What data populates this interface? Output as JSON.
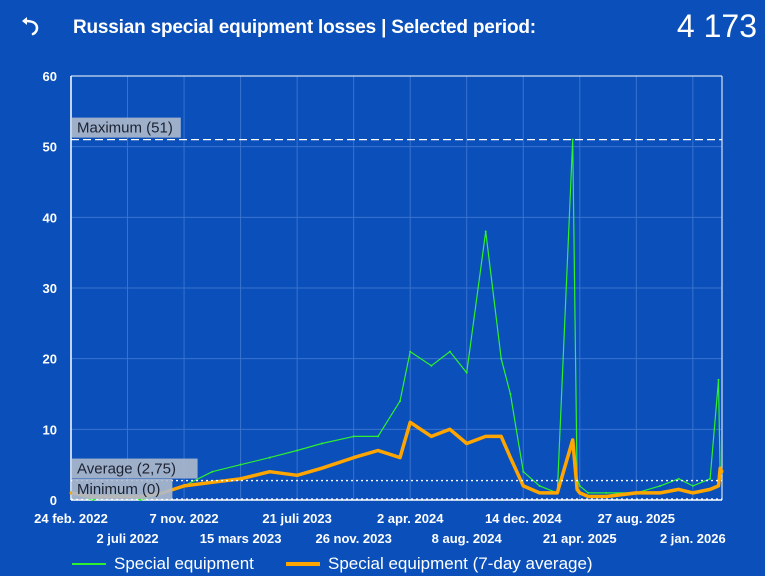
{
  "header": {
    "back_icon": "undo-arrow-icon",
    "title": "Russian special equipment losses | Selected period:",
    "total": "4 173"
  },
  "colors": {
    "background": "#0a4fba",
    "daily": "#2ef02e",
    "average": "#ffa500",
    "grid": "#3a73cf",
    "ref_line": "#ffffff",
    "ref_label_bg": "#aeb9cc"
  },
  "chart_data": {
    "type": "line",
    "title": "Russian special equipment losses",
    "xlabel": "",
    "ylabel": "",
    "x_range": [
      "2022-02-24",
      "2026-03-09"
    ],
    "ylim": [
      0,
      60
    ],
    "yticks": [
      "0",
      "10",
      "20",
      "30",
      "40",
      "50",
      "60"
    ],
    "xticks_row1": [
      "24 feb. 2022",
      "7 nov. 2022",
      "21 juli 2023",
      "2 apr. 2024",
      "14 dec. 2024",
      "27 aug. 2025"
    ],
    "xticks_row2": [
      "2 juli 2022",
      "15 mars 2023",
      "26 nov. 2023",
      "8 aug. 2024",
      "21 apr. 2025",
      "2 jan. 2026"
    ],
    "xticks_row1_dates": [
      "2022-02-24",
      "2022-11-07",
      "2023-07-21",
      "2024-04-02",
      "2024-12-14",
      "2025-08-27"
    ],
    "xticks_row2_dates": [
      "2022-07-02",
      "2023-03-15",
      "2023-11-26",
      "2024-08-08",
      "2025-04-21",
      "2026-01-02"
    ],
    "grid": true,
    "legend_position": "bottom",
    "reference_lines": [
      {
        "label": "Maximum (51)",
        "value": 51,
        "style": "dashed"
      },
      {
        "label": "Average (2,75)",
        "value": 2.75,
        "style": "dotted"
      },
      {
        "label": "Minimum (0)",
        "value": 0,
        "style": "dotted"
      }
    ],
    "series": [
      {
        "name": "Special equipment",
        "style": "thin-line",
        "x": [
          "2022-02-24",
          "2022-04-15",
          "2022-06-10",
          "2022-08-01",
          "2022-09-20",
          "2022-11-07",
          "2023-01-10",
          "2023-03-15",
          "2023-05-20",
          "2023-07-21",
          "2023-09-15",
          "2023-11-26",
          "2024-01-20",
          "2024-03-10",
          "2024-04-02",
          "2024-05-20",
          "2024-07-01",
          "2024-08-08",
          "2024-09-20",
          "2024-10-25",
          "2024-11-15",
          "2024-12-14",
          "2025-01-20",
          "2025-03-01",
          "2025-04-05",
          "2025-04-15",
          "2025-04-21",
          "2025-05-10",
          "2025-06-20",
          "2025-08-27",
          "2025-10-20",
          "2025-12-01",
          "2026-01-02",
          "2026-02-10",
          "2026-03-01",
          "2026-03-05",
          "2026-03-09"
        ],
        "y": [
          1,
          0,
          1,
          0,
          1,
          2,
          4,
          5,
          6,
          7,
          8,
          9,
          9,
          14,
          21,
          19,
          21,
          18,
          38,
          20,
          15,
          4,
          2,
          1,
          51,
          3,
          2,
          1,
          1,
          1,
          2,
          3,
          2,
          3,
          17,
          3,
          4
        ]
      },
      {
        "name": "Special equipment (7-day average)",
        "style": "thick-line",
        "x": [
          "2022-02-24",
          "2022-04-15",
          "2022-06-10",
          "2022-08-01",
          "2022-09-20",
          "2022-11-07",
          "2023-01-10",
          "2023-03-15",
          "2023-05-20",
          "2023-07-21",
          "2023-09-15",
          "2023-11-26",
          "2024-01-20",
          "2024-03-10",
          "2024-04-02",
          "2024-05-20",
          "2024-07-01",
          "2024-08-08",
          "2024-09-20",
          "2024-10-25",
          "2024-11-15",
          "2024-12-14",
          "2025-01-20",
          "2025-03-01",
          "2025-04-05",
          "2025-04-15",
          "2025-04-21",
          "2025-05-10",
          "2025-06-20",
          "2025-08-27",
          "2025-10-20",
          "2025-12-01",
          "2026-01-02",
          "2026-02-10",
          "2026-03-01",
          "2026-03-05",
          "2026-03-09"
        ],
        "y": [
          1,
          0.5,
          0.5,
          0.5,
          1,
          2,
          2.5,
          3,
          4,
          3.5,
          4.5,
          6,
          7,
          6,
          11,
          9,
          10,
          8,
          9,
          9,
          6,
          2,
          1,
          1,
          8.5,
          1.5,
          1,
          0.5,
          0.5,
          1,
          1,
          1.5,
          1,
          1.5,
          2,
          4.5,
          4
        ]
      }
    ]
  },
  "legend": [
    {
      "label": "Special equipment",
      "color": "#2ef02e"
    },
    {
      "label": "Special equipment (7-day average)",
      "color": "#ffa500"
    }
  ]
}
